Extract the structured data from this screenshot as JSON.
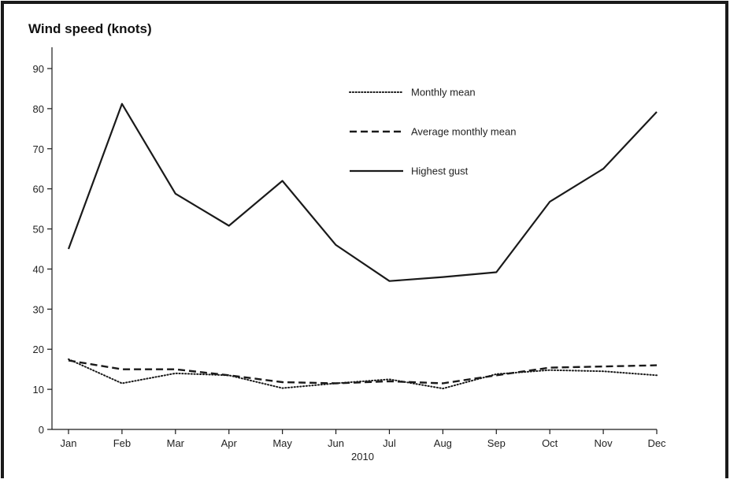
{
  "chart_data": {
    "type": "line",
    "title": "Wind speed (knots)",
    "xlabel": "2010",
    "ylabel": "",
    "categories": [
      "Jan",
      "Feb",
      "Mar",
      "Apr",
      "May",
      "Jun",
      "Jul",
      "Aug",
      "Sep",
      "Oct",
      "Nov",
      "Dec"
    ],
    "ylim": [
      0,
      95
    ],
    "yticks": [
      0,
      10,
      20,
      30,
      40,
      50,
      60,
      70,
      80,
      90
    ],
    "grid": false,
    "legend_position": "top-right",
    "series": [
      {
        "name": "Monthly mean",
        "style": "dotted",
        "color": "#1a1a1a",
        "values": [
          17.5,
          11.5,
          14,
          13.5,
          10.3,
          11.5,
          12.5,
          10.2,
          13.8,
          14.8,
          14.5,
          13.5
        ]
      },
      {
        "name": "Average monthly mean",
        "style": "dashed",
        "color": "#1a1a1a",
        "values": [
          17.2,
          15,
          15,
          13.5,
          11.8,
          11.5,
          12,
          11.5,
          13.5,
          15.4,
          15.7,
          16
        ]
      },
      {
        "name": "Highest gust",
        "style": "solid",
        "color": "#1a1a1a",
        "values": [
          45,
          81.2,
          58.8,
          50.8,
          62,
          46,
          37,
          38,
          39.2,
          56.8,
          65,
          79.2
        ]
      }
    ]
  }
}
